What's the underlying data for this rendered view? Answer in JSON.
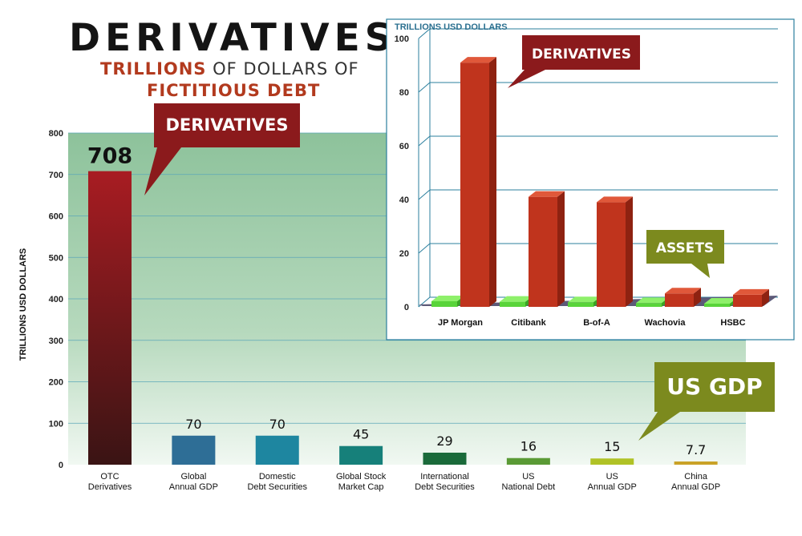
{
  "title": "DERIVATIVES",
  "subtitle": {
    "part1": "TRILLIONS",
    "part2": " OF DOLLARS OF",
    "part3": "FICTITIOUS DEBT"
  },
  "colors": {
    "derivatives_red": "#a81c22",
    "callout_red": "#8b1a1c",
    "callout_olive": "#7c8a1e",
    "plot_green_top": "#8fc39a",
    "inset_grid": "#2b7f9e"
  },
  "chart_data": [
    {
      "type": "bar",
      "categories": [
        "OTC\nDerivatives",
        "Global\nAnnual GDP",
        "Domestic\nDebt Securities",
        "Global Stock\nMarket Cap",
        "International\nDebt Securities",
        "US\nNational Debt",
        "US\nAnnual GDP",
        "China\nAnnual GDP"
      ],
      "values": [
        708,
        70,
        70,
        45,
        29,
        16,
        15,
        7.7
      ],
      "value_labels": [
        "708",
        "70",
        "70",
        "45",
        "29",
        "16",
        "15",
        "7.7"
      ],
      "bar_colors": [
        "#7d1a1a",
        "#2e6e96",
        "#1e86a0",
        "#16807a",
        "#1a6a3a",
        "#5a9a35",
        "#b0c226",
        "#c9a227"
      ],
      "ylabel": "TRILLIONS USD DOLLARS",
      "ylim": [
        0,
        800
      ],
      "yticks": [
        0,
        100,
        200,
        300,
        400,
        500,
        600,
        700,
        800
      ],
      "grid": true,
      "callouts": [
        {
          "text": "DERIVATIVES",
          "color": "#8b1a1c"
        },
        {
          "text": "US GDP",
          "color": "#7c8a1e"
        }
      ]
    },
    {
      "type": "bar",
      "categories": [
        "JP Morgan",
        "Citibank",
        "B-of-A",
        "Wachovia",
        "HSBC"
      ],
      "series": [
        {
          "name": "DERIVATIVES",
          "values": [
            91,
            41,
            39,
            5,
            4.5
          ],
          "color": "#c0341d"
        },
        {
          "name": "ASSETS",
          "values": [
            2.1,
            1.9,
            1.7,
            1.4,
            1.2
          ],
          "color": "#59d43a"
        }
      ],
      "ylabel": "TRILLIONS USD DOLLARS",
      "ylim": [
        0,
        100
      ],
      "yticks": [
        0,
        20,
        40,
        60,
        80,
        100
      ],
      "grid": true,
      "callouts": [
        {
          "text": "DERIVATIVES",
          "color": "#8b1a1c"
        },
        {
          "text": "ASSETS",
          "color": "#7c8a1e"
        }
      ]
    }
  ]
}
